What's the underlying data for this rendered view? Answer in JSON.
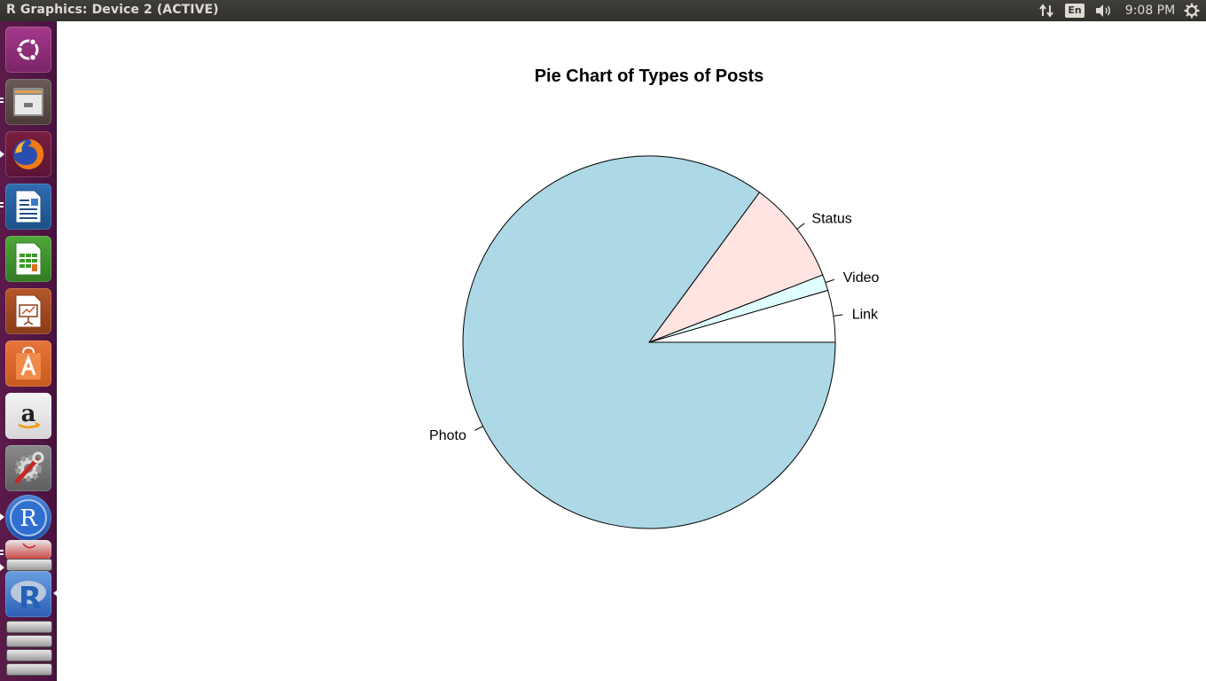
{
  "window": {
    "title": "R Graphics: Device 2 (ACTIVE)"
  },
  "panel": {
    "keyboard_layout": "En",
    "clock": "9:08 PM",
    "icons": [
      "network-updown-icon",
      "sound-icon",
      "session-gear-icon"
    ]
  },
  "launcher": {
    "items": [
      "ubuntu-dash-icon",
      "files-icon",
      "firefox-icon",
      "writer-icon",
      "calc-icon",
      "impress-icon",
      "software-center-icon",
      "amazon-icon",
      "system-settings-icon",
      "r-icon",
      "evince-icon",
      "rstudio-icon",
      "trash-icon"
    ]
  },
  "chart_data": {
    "type": "pie",
    "title": "Pie Chart of Types of Posts",
    "slices": [
      {
        "label": "Link",
        "value": 4.5,
        "color": "#ffffff"
      },
      {
        "label": "Video",
        "value": 1.4,
        "color": "#e0ffff"
      },
      {
        "label": "Status",
        "value": 9.0,
        "color": "#ffe4e1"
      },
      {
        "label": "Photo",
        "value": 85.1,
        "color": "#add8e6"
      }
    ],
    "start": "3 o'clock, counter-clockwise"
  }
}
